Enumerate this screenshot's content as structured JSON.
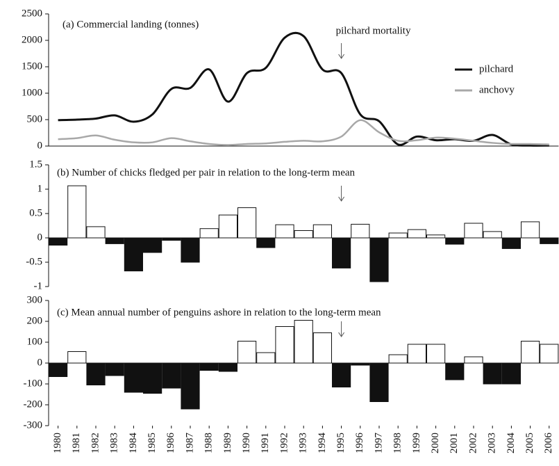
{
  "chart_data": [
    {
      "type": "line",
      "title": "(a) Commercial landing (tonnes)",
      "categories": [
        "1980",
        "1981",
        "1982",
        "1983",
        "1984",
        "1985",
        "1986",
        "1987",
        "1988",
        "1989",
        "1990",
        "1991",
        "1992",
        "1993",
        "1994",
        "1995",
        "1996",
        "1997",
        "1998",
        "1999",
        "2000",
        "2001",
        "2002",
        "2003",
        "2004",
        "2005",
        "2006"
      ],
      "series": [
        {
          "name": "pilchard",
          "color": "#111111",
          "values": [
            490,
            500,
            520,
            580,
            460,
            600,
            1080,
            1100,
            1450,
            840,
            1380,
            1480,
            2050,
            2080,
            1450,
            1380,
            600,
            470,
            30,
            180,
            110,
            130,
            100,
            210,
            30,
            10,
            10
          ]
        },
        {
          "name": "anchovy",
          "color": "#a8a8a8",
          "values": [
            130,
            150,
            200,
            120,
            70,
            70,
            150,
            90,
            40,
            20,
            40,
            50,
            80,
            100,
            90,
            180,
            490,
            260,
            100,
            110,
            160,
            140,
            100,
            60,
            40,
            40,
            30
          ]
        }
      ],
      "ylim": [
        0,
        2500
      ],
      "yticks": [
        0,
        500,
        1000,
        1500,
        2000,
        2500
      ],
      "legend": "upper right",
      "annotation": {
        "text": "pilchard mortality",
        "category": "1995"
      }
    },
    {
      "type": "bar",
      "title": "(b) Number of chicks fledged per pair in relation to the long-term mean",
      "categories": [
        "1980",
        "1981",
        "1982",
        "1983",
        "1984",
        "1985",
        "1986",
        "1987",
        "1988",
        "1989",
        "1990",
        "1991",
        "1992",
        "1993",
        "1994",
        "1995",
        "1996",
        "1997",
        "1998",
        "1999",
        "2000",
        "2001",
        "2002",
        "2003",
        "2004",
        "2005",
        "2006"
      ],
      "values": [
        -0.15,
        1.07,
        0.23,
        -0.12,
        -0.68,
        -0.3,
        -0.05,
        -0.5,
        0.19,
        0.47,
        0.62,
        -0.2,
        0.27,
        0.15,
        0.27,
        -0.62,
        0.28,
        -0.9,
        0.1,
        0.17,
        0.06,
        -0.13,
        0.3,
        0.13,
        -0.22,
        0.33,
        -0.12
      ],
      "positive_color": "#ffffff",
      "negative_color": "#111111",
      "ylim": [
        -1,
        1.5
      ],
      "yticks": [
        -1,
        -0.5,
        0,
        0.5,
        1,
        1.5
      ],
      "annotation": {
        "category": "1995"
      }
    },
    {
      "type": "bar",
      "title": "(c) Mean annual number of penguins ashore in relation to the long-term mean",
      "categories": [
        "1980",
        "1981",
        "1982",
        "1983",
        "1984",
        "1985",
        "1986",
        "1987",
        "1988",
        "1989",
        "1990",
        "1991",
        "1992",
        "1993",
        "1994",
        "1995",
        "1996",
        "1997",
        "1998",
        "1999",
        "2000",
        "2001",
        "2002",
        "2003",
        "2004",
        "2005",
        "2006"
      ],
      "values": [
        -65,
        55,
        -105,
        -60,
        -140,
        -145,
        -120,
        -220,
        -35,
        -40,
        105,
        50,
        175,
        205,
        145,
        -115,
        -10,
        -185,
        40,
        90,
        90,
        -80,
        30,
        -100,
        -100,
        105,
        90
      ],
      "positive_color": "#ffffff",
      "negative_color": "#111111",
      "ylim": [
        -300,
        300
      ],
      "yticks": [
        -300,
        -200,
        -100,
        0,
        100,
        200,
        300
      ],
      "annotation": {
        "category": "1995"
      }
    }
  ]
}
